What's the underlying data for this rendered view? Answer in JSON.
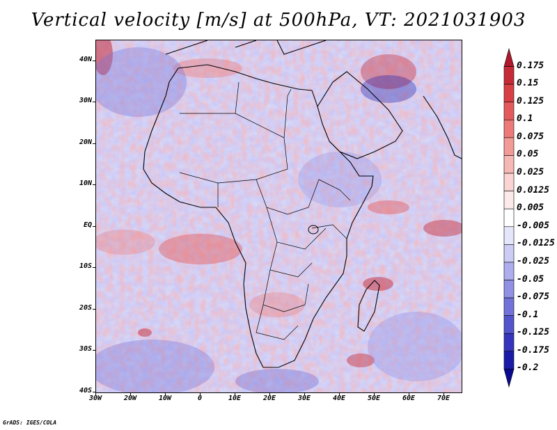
{
  "title": "Vertical velocity [m/s] at 500hPa, VT: 2021031903",
  "map": {
    "lat_labels": [
      "40N",
      "30N",
      "20N",
      "10N",
      "EQ",
      "10S",
      "20S",
      "30S",
      "40S"
    ],
    "lon_labels": [
      "30W",
      "20W",
      "10W",
      "0",
      "10E",
      "20E",
      "30E",
      "40E",
      "50E",
      "60E",
      "70E"
    ],
    "lat_range": [
      -40,
      45
    ],
    "lon_range": [
      -30,
      75
    ]
  },
  "colorbar": {
    "labels": [
      "0.175",
      "0.15",
      "0.125",
      "0.1",
      "0.075",
      "0.05",
      "0.025",
      "0.0125",
      "0.005",
      "-0.005",
      "-0.0125",
      "-0.025",
      "-0.05",
      "-0.075",
      "-0.1",
      "-0.125",
      "-0.175",
      "-0.2"
    ],
    "colors": [
      "#b0182c",
      "#c62a36",
      "#d94045",
      "#e45a5c",
      "#ed7a78",
      "#f29a96",
      "#f6b8b4",
      "#fad4d2",
      "#fceaea",
      "#ffffff",
      "#e6e6fa",
      "#ccccf4",
      "#aeaeee",
      "#9090e4",
      "#7272da",
      "#5454cc",
      "#3535bd",
      "#1b1ba8",
      "#0a0a90"
    ]
  },
  "credit": "GrADS: IGES/COLA",
  "colors": {
    "land_outline": "#000000",
    "positive": "#d94045",
    "negative": "#5454cc"
  }
}
